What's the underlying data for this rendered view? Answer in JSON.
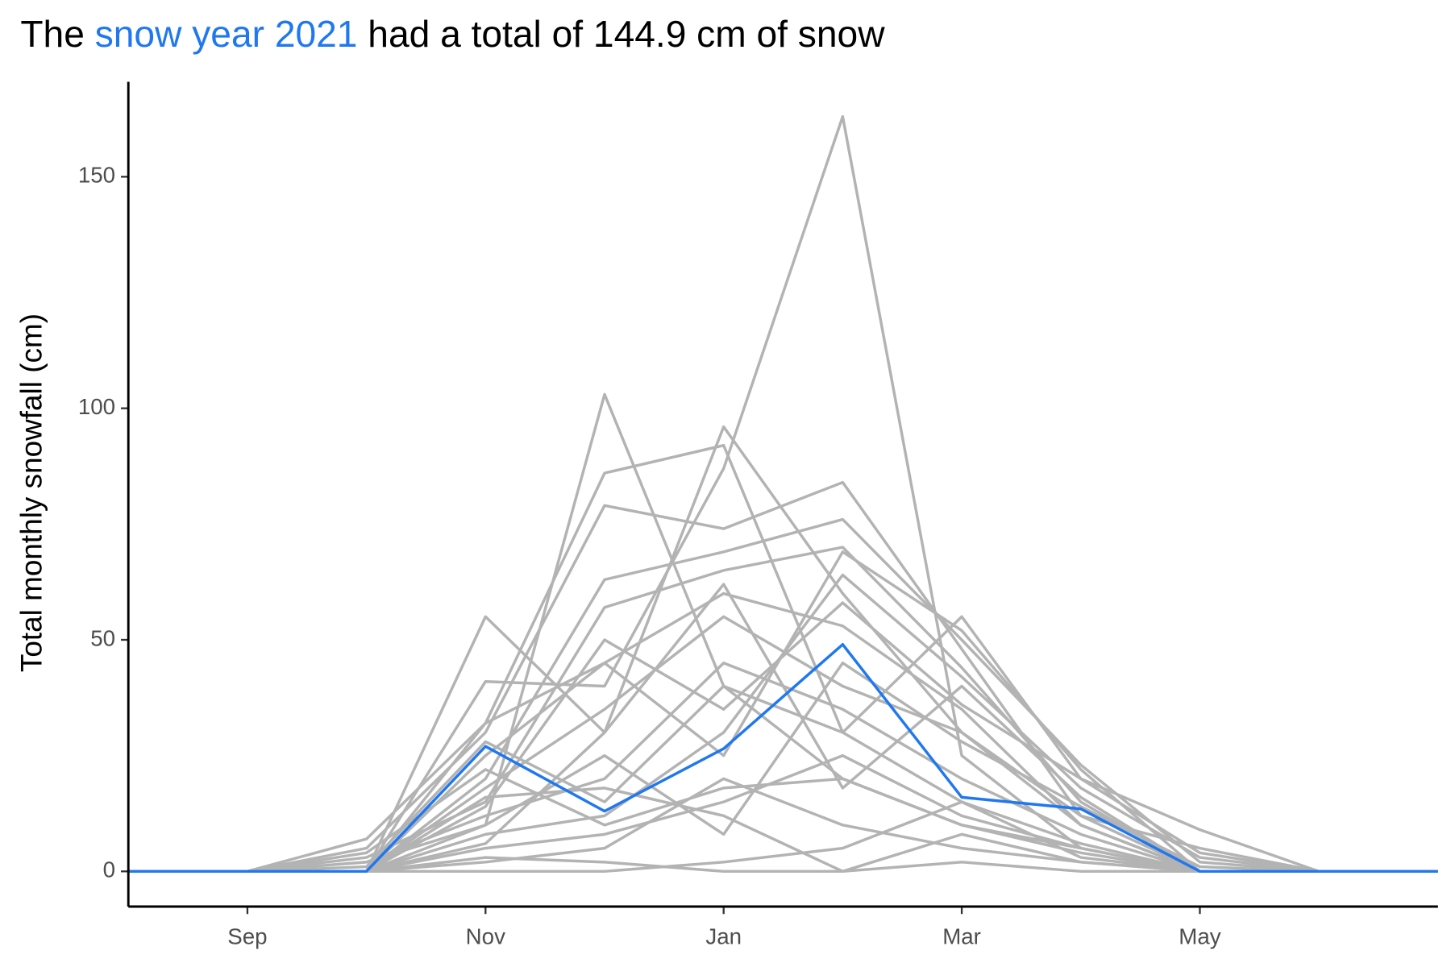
{
  "chart_data": {
    "type": "line",
    "title": [
      "The ",
      "snow year 2021",
      " had a total of 144.9 cm of snow"
    ],
    "title_highlight_color": "#1f78f0",
    "y_label": "Total monthly snowfall (cm)",
    "categories": [
      null,
      "Sep",
      null,
      "Nov",
      null,
      "Jan",
      null,
      "Mar",
      null,
      "May",
      null,
      null
    ],
    "ylim": [
      -7.6,
      170.5
    ],
    "yticks": [
      0,
      50,
      100,
      150
    ],
    "grid": false,
    "series": [
      {
        "color": "#b3b3b3",
        "values": [
          0,
          0,
          2,
          10,
          103,
          40,
          20,
          10,
          5,
          0,
          0,
          0
        ]
      },
      {
        "color": "#b3b3b3",
        "values": [
          0,
          0,
          0,
          55,
          30,
          96,
          60,
          30,
          10,
          0,
          0,
          0
        ]
      },
      {
        "color": "#b3b3b3",
        "values": [
          0,
          0,
          7,
          32,
          86,
          92,
          30,
          55,
          20,
          9,
          0,
          0
        ]
      },
      {
        "color": "#b3b3b3",
        "values": [
          0,
          0,
          0,
          41,
          40,
          87,
          163,
          25,
          5,
          0,
          0,
          0
        ]
      },
      {
        "color": "#b3b3b3",
        "values": [
          0,
          0,
          5,
          30,
          79,
          74,
          84,
          48,
          12,
          5,
          0,
          0
        ]
      },
      {
        "color": "#b3b3b3",
        "values": [
          0,
          0,
          0,
          20,
          63,
          69,
          76,
          50,
          23,
          2,
          0,
          0
        ]
      },
      {
        "color": "#b3b3b3",
        "values": [
          0,
          0,
          3,
          15,
          57,
          65,
          70,
          44,
          15,
          0,
          0,
          0
        ]
      },
      {
        "color": "#b3b3b3",
        "values": [
          0,
          0,
          0,
          25,
          45,
          60,
          53,
          35,
          10,
          0,
          0,
          0
        ]
      },
      {
        "color": "#b3b3b3",
        "values": [
          0,
          0,
          0,
          8,
          12,
          30,
          64,
          42,
          18,
          3,
          0,
          0
        ]
      },
      {
        "color": "#b3b3b3",
        "values": [
          0,
          0,
          2,
          12,
          20,
          45,
          35,
          20,
          8,
          0,
          0,
          0
        ]
      },
      {
        "color": "#b3b3b3",
        "values": [
          0,
          0,
          0,
          5,
          8,
          15,
          25,
          12,
          5,
          0,
          0,
          0
        ]
      },
      {
        "color": "#b3b3b3",
        "values": [
          0,
          0,
          0,
          3,
          2,
          0,
          0,
          2,
          0,
          0,
          0,
          0
        ]
      },
      {
        "color": "#b3b3b3",
        "values": [
          0,
          0,
          0,
          18,
          35,
          55,
          40,
          30,
          12,
          0,
          0,
          0
        ]
      },
      {
        "color": "#b3b3b3",
        "values": [
          0,
          0,
          4,
          22,
          10,
          18,
          20,
          10,
          4,
          0,
          0,
          0
        ]
      },
      {
        "color": "#b3b3b3",
        "values": [
          0,
          0,
          0,
          10,
          25,
          8,
          45,
          28,
          14,
          1,
          0,
          0
        ]
      },
      {
        "color": "#b3b3b3",
        "values": [
          0,
          0,
          0,
          2,
          5,
          20,
          10,
          5,
          2,
          0,
          0,
          0
        ]
      },
      {
        "color": "#b3b3b3",
        "values": [
          0,
          0,
          1,
          28,
          15,
          40,
          30,
          15,
          3,
          0,
          0,
          0
        ]
      },
      {
        "color": "#b3b3b3",
        "values": [
          0,
          0,
          0,
          14,
          50,
          35,
          58,
          36,
          20,
          4,
          0,
          0
        ]
      },
      {
        "color": "#b3b3b3",
        "values": [
          0,
          0,
          0,
          6,
          30,
          62,
          18,
          40,
          16,
          0,
          0,
          0
        ]
      },
      {
        "color": "#b3b3b3",
        "values": [
          0,
          0,
          0,
          0,
          0,
          2,
          5,
          15,
          6,
          0,
          0,
          0
        ]
      },
      {
        "color": "#b3b3b3",
        "values": [
          0,
          0,
          0,
          32,
          45,
          25,
          69,
          52,
          22,
          0,
          0,
          0
        ]
      },
      {
        "color": "#b3b3b3",
        "values": [
          0,
          0,
          0,
          16,
          18,
          12,
          0,
          8,
          2,
          0,
          0,
          0
        ]
      },
      {
        "color": "#1f78f0",
        "values": [
          0,
          0,
          0,
          27,
          13,
          26.5,
          49,
          16,
          13.5,
          0,
          0,
          0
        ]
      }
    ]
  }
}
